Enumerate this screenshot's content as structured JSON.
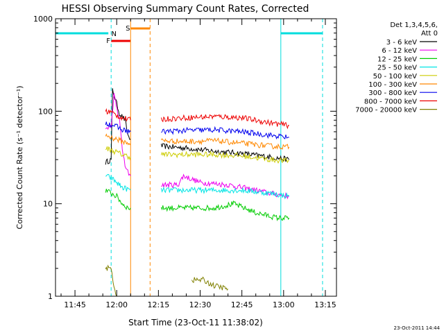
{
  "chart_data": {
    "type": "line",
    "title": "HESSI Observing Summary Count Rates, Corrected",
    "xlabel": "Start Time (23-Oct-11 11:38:02)",
    "ylabel": "Corrected Count Rate (s⁻¹ detector⁻¹)",
    "y_scale": "log",
    "ylim": [
      1,
      1000
    ],
    "xlim": [
      "11:38",
      "13:19"
    ],
    "x_ticks": [
      "11:45",
      "12:00",
      "12:15",
      "12:30",
      "12:45",
      "13:00",
      "13:15"
    ],
    "y_ticks": [
      "1",
      "10",
      "100",
      "1000"
    ],
    "legend_title": "Det 1,3,4,5,6,",
    "legend_subtitle": "Att 0",
    "legend_position": "right",
    "footer_date": "23-Oct-2011 14:44",
    "flags": {
      "N": {
        "label": "N",
        "color": "#00dddd"
      },
      "F": {
        "label": "F",
        "color": "#ee0000"
      },
      "S": {
        "label": "S",
        "color": "#ff8800"
      }
    },
    "series": [
      {
        "name": "3 - 6 keV",
        "color": "#000000",
        "segments": [
          [
            [
              "11:56",
              28
            ],
            [
              "11:58",
              30
            ],
            [
              "11:58.5",
              170
            ],
            [
              "12:00",
              120
            ],
            [
              "12:01",
              95
            ],
            [
              "12:03",
              80
            ],
            [
              "12:04",
              55
            ],
            [
              "12:05",
              50
            ]
          ],
          [
            [
              "12:16",
              42
            ],
            [
              "12:25",
              40
            ],
            [
              "12:35",
              37
            ],
            [
              "12:45",
              35
            ],
            [
              "12:55",
              32
            ],
            [
              "13:02",
              30
            ]
          ]
        ]
      },
      {
        "name": "6 - 12 keV",
        "color": "#ee00ee",
        "segments": [
          [
            [
              "11:56",
              65
            ],
            [
              "11:58",
              68
            ],
            [
              "11:59",
              150
            ],
            [
              "12:01",
              80
            ],
            [
              "12:02",
              40
            ],
            [
              "12:03",
              25
            ],
            [
              "12:04",
              22
            ],
            [
              "12:05",
              20
            ]
          ],
          [
            [
              "12:16",
              16
            ],
            [
              "12:22",
              16
            ],
            [
              "12:24",
              20
            ],
            [
              "12:30",
              17
            ],
            [
              "12:40",
              16
            ],
            [
              "12:50",
              14
            ],
            [
              "12:55",
              13
            ],
            [
              "13:02",
              12
            ]
          ]
        ]
      },
      {
        "name": "12 - 25 keV",
        "color": "#00cc00",
        "segments": [
          [
            [
              "11:56",
              14
            ],
            [
              "11:58",
              13
            ],
            [
              "12:00",
              12
            ],
            [
              "12:02",
              10
            ],
            [
              "12:04",
              9
            ],
            [
              "12:05",
              9
            ]
          ],
          [
            [
              "12:16",
              9
            ],
            [
              "12:25",
              9
            ],
            [
              "12:35",
              9
            ],
            [
              "12:42",
              10
            ],
            [
              "12:50",
              8
            ],
            [
              "12:58",
              7
            ],
            [
              "13:02",
              7
            ]
          ]
        ]
      },
      {
        "name": "25 - 50 keV",
        "color": "#00e5e5",
        "segments": [
          [
            [
              "11:56",
              20
            ],
            [
              "11:58",
              19
            ],
            [
              "12:00",
              17
            ],
            [
              "12:02",
              15
            ],
            [
              "12:05",
              14
            ]
          ],
          [
            [
              "12:16",
              14
            ],
            [
              "12:25",
              14
            ],
            [
              "12:35",
              14
            ],
            [
              "12:45",
              14
            ],
            [
              "12:55",
              13
            ],
            [
              "13:02",
              12
            ]
          ]
        ]
      },
      {
        "name": "50 - 100 keV",
        "color": "#cccc00",
        "segments": [
          [
            [
              "11:56",
              40
            ],
            [
              "11:58",
              38
            ],
            [
              "12:00",
              36
            ],
            [
              "12:02",
              34
            ],
            [
              "12:05",
              32
            ]
          ],
          [
            [
              "12:16",
              34
            ],
            [
              "12:25",
              34
            ],
            [
              "12:35",
              34
            ],
            [
              "12:45",
              33
            ],
            [
              "12:55",
              30
            ],
            [
              "13:02",
              29
            ]
          ]
        ]
      },
      {
        "name": "100 - 300 keV",
        "color": "#ff8800",
        "segments": [
          [
            [
              "11:56",
              55
            ],
            [
              "11:58",
              52
            ],
            [
              "12:00",
              50
            ],
            [
              "12:02",
              47
            ],
            [
              "12:05",
              45
            ]
          ],
          [
            [
              "12:16",
              48
            ],
            [
              "12:25",
              47
            ],
            [
              "12:35",
              48
            ],
            [
              "12:45",
              45
            ],
            [
              "12:55",
              42
            ],
            [
              "13:02",
              41
            ]
          ]
        ]
      },
      {
        "name": "300 - 800 keV",
        "color": "#0000ee",
        "segments": [
          [
            [
              "11:56",
              75
            ],
            [
              "11:58",
              72
            ],
            [
              "12:00",
              68
            ],
            [
              "12:02",
              63
            ],
            [
              "12:05",
              60
            ]
          ],
          [
            [
              "12:16",
              60
            ],
            [
              "12:25",
              62
            ],
            [
              "12:35",
              63
            ],
            [
              "12:45",
              60
            ],
            [
              "12:55",
              55
            ],
            [
              "13:02",
              52
            ]
          ]
        ]
      },
      {
        "name": "800 - 7000 keV",
        "color": "#ee0000",
        "segments": [
          [
            [
              "11:56",
              100
            ],
            [
              "11:58",
              98
            ],
            [
              "12:00",
              90
            ],
            [
              "12:02",
              85
            ],
            [
              "12:05",
              80
            ]
          ],
          [
            [
              "12:16",
              82
            ],
            [
              "12:25",
              85
            ],
            [
              "12:35",
              88
            ],
            [
              "12:45",
              85
            ],
            [
              "12:55",
              75
            ],
            [
              "13:02",
              70
            ]
          ]
        ]
      },
      {
        "name": "7000 - 20000 keV",
        "color": "#808000",
        "segments": [
          [
            [
              "11:56",
              2
            ],
            [
              "11:58",
              2
            ],
            [
              "11:59",
              1.3
            ],
            [
              "12:00",
              1
            ]
          ],
          [
            [
              "12:27",
              1.5
            ],
            [
              "12:31",
              1.5
            ],
            [
              "12:35",
              1.3
            ],
            [
              "12:40",
              1.2
            ]
          ]
        ]
      }
    ]
  }
}
